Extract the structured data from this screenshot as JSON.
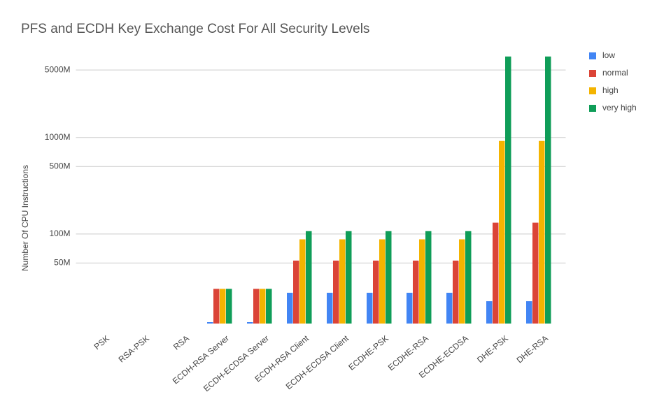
{
  "chart_data": {
    "type": "bar",
    "title": "PFS and ECDH Key Exchange Cost For All Security Levels",
    "y_label": "Number Of CPU Instructions",
    "log_scale": true,
    "grid": true,
    "legend_position": "right",
    "categories": [
      "PSK",
      "RSA-PSK",
      "RSA",
      "ECDH-RSA Server",
      "ECDH-ECDSA Server",
      "ECDH-RSA Client",
      "ECDH-ECDSA Client",
      "ECDHE-PSK",
      "ECDHE-RSA",
      "ECDHE-ECDSA",
      "DHE-PSK",
      "DHE-RSA"
    ],
    "series": [
      {
        "name": "low",
        "color": "#4285f4",
        "values": [
          null,
          null,
          null,
          12.2,
          12.2,
          24.6,
          24.6,
          24.6,
          24.6,
          24.6,
          20.1,
          20.1
        ]
      },
      {
        "name": "normal",
        "color": "#db4437",
        "values": [
          null,
          null,
          null,
          27,
          27,
          53,
          53,
          53,
          53,
          53,
          131,
          131
        ]
      },
      {
        "name": "high",
        "color": "#f4b400",
        "values": [
          null,
          null,
          null,
          27,
          27,
          88,
          88,
          88,
          88,
          88,
          920,
          920
        ]
      },
      {
        "name": "very high",
        "color": "#0f9d58",
        "values": [
          null,
          null,
          null,
          27,
          27,
          107,
          107,
          107,
          107,
          107,
          6900,
          6900
        ]
      }
    ],
    "ylim": [
      11.8,
      7000
    ],
    "yticks": [
      {
        "value": 50,
        "label": "50M"
      },
      {
        "value": 100,
        "label": "100M"
      },
      {
        "value": 500,
        "label": "500M"
      },
      {
        "value": 1000,
        "label": "1000M"
      },
      {
        "value": 5000,
        "label": "5000M"
      }
    ]
  }
}
